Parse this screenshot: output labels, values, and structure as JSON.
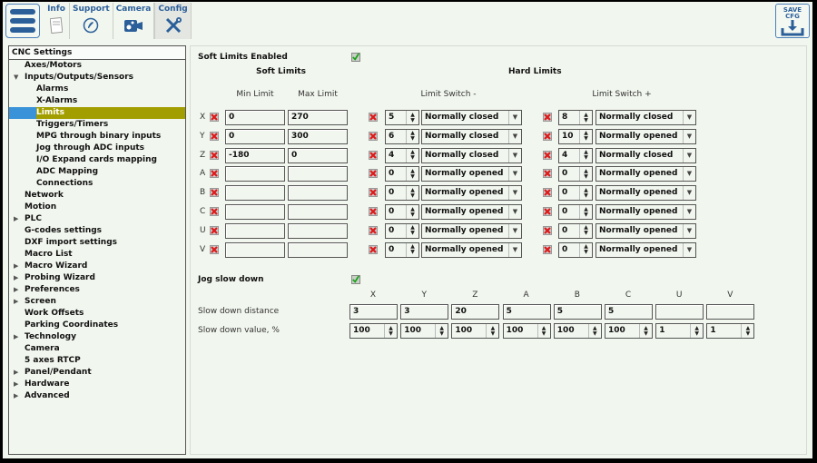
{
  "toolbar": {
    "menu_icon": "hamburger-menu-icon",
    "tabs": [
      {
        "label": "Info",
        "icon": "info-notepad-icon",
        "active": false
      },
      {
        "label": "Support",
        "icon": "phone-icon",
        "active": false
      },
      {
        "label": "Camera",
        "icon": "camera-icon",
        "active": false
      },
      {
        "label": "Config",
        "icon": "tools-icon",
        "active": true
      }
    ],
    "save_button": {
      "line1": "SAVE",
      "line2": "CFG",
      "icon": "download-icon"
    }
  },
  "sidebar": {
    "header": "CNC Settings",
    "items": [
      {
        "label": "Axes/Motors",
        "level": 1,
        "arrow": ""
      },
      {
        "label": "Inputs/Outputs/Sensors",
        "level": 1,
        "arrow": "expanded"
      },
      {
        "label": "Alarms",
        "level": 2,
        "arrow": ""
      },
      {
        "label": "X-Alarms",
        "level": 2,
        "arrow": ""
      },
      {
        "label": "Limits",
        "level": 2,
        "arrow": "",
        "selected": true
      },
      {
        "label": "Triggers/Timers",
        "level": 2,
        "arrow": ""
      },
      {
        "label": "MPG through binary inputs",
        "level": 2,
        "arrow": ""
      },
      {
        "label": "Jog through ADC inputs",
        "level": 2,
        "arrow": ""
      },
      {
        "label": "I/O Expand cards mapping",
        "level": 2,
        "arrow": ""
      },
      {
        "label": "ADC Mapping",
        "level": 2,
        "arrow": ""
      },
      {
        "label": "Connections",
        "level": 2,
        "arrow": ""
      },
      {
        "label": "Network",
        "level": 1,
        "arrow": ""
      },
      {
        "label": "Motion",
        "level": 1,
        "arrow": ""
      },
      {
        "label": "PLC",
        "level": 1,
        "arrow": "collapsed"
      },
      {
        "label": "G-codes settings",
        "level": 1,
        "arrow": ""
      },
      {
        "label": "DXF import settings",
        "level": 1,
        "arrow": ""
      },
      {
        "label": "Macro List",
        "level": 1,
        "arrow": ""
      },
      {
        "label": "Macro Wizard",
        "level": 1,
        "arrow": "collapsed"
      },
      {
        "label": "Probing Wizard",
        "level": 1,
        "arrow": "collapsed"
      },
      {
        "label": "Preferences",
        "level": 1,
        "arrow": "collapsed"
      },
      {
        "label": "Screen",
        "level": 1,
        "arrow": "collapsed"
      },
      {
        "label": "Work Offsets",
        "level": 1,
        "arrow": ""
      },
      {
        "label": "Parking Coordinates",
        "level": 1,
        "arrow": ""
      },
      {
        "label": "Technology",
        "level": 1,
        "arrow": "collapsed"
      },
      {
        "label": "Camera",
        "level": 1,
        "arrow": ""
      },
      {
        "label": "5 axes RTCP",
        "level": 1,
        "arrow": ""
      },
      {
        "label": "Panel/Pendant",
        "level": 1,
        "arrow": "collapsed"
      },
      {
        "label": "Hardware",
        "level": 1,
        "arrow": "collapsed"
      },
      {
        "label": "Advanced",
        "level": 1,
        "arrow": "collapsed"
      }
    ]
  },
  "limits": {
    "soft_limits_enabled_label": "Soft Limits Enabled",
    "soft_limits_enabled": true,
    "soft_limits_title": "Soft Limits",
    "hard_limits_title": "Hard Limits",
    "col_min": "Min Limit",
    "col_max": "Max Limit",
    "col_switch_minus": "Limit Switch -",
    "col_switch_plus": "Limit Switch +",
    "rows": [
      {
        "axis": "X",
        "soft_enabled": false,
        "min": "0",
        "max": "270",
        "minus_enabled": false,
        "minus_pin": "5",
        "minus_type": "Normally closed",
        "plus_enabled": false,
        "plus_pin": "8",
        "plus_type": "Normally closed"
      },
      {
        "axis": "Y",
        "soft_enabled": false,
        "min": "0",
        "max": "300",
        "minus_enabled": false,
        "minus_pin": "6",
        "minus_type": "Normally closed",
        "plus_enabled": false,
        "plus_pin": "10",
        "plus_type": "Normally opened"
      },
      {
        "axis": "Z",
        "soft_enabled": false,
        "min": "-180",
        "max": "0",
        "minus_enabled": false,
        "minus_pin": "4",
        "minus_type": "Normally closed",
        "plus_enabled": false,
        "plus_pin": "4",
        "plus_type": "Normally closed"
      },
      {
        "axis": "A",
        "soft_enabled": false,
        "min": "",
        "max": "",
        "minus_enabled": false,
        "minus_pin": "0",
        "minus_type": "Normally opened",
        "plus_enabled": false,
        "plus_pin": "0",
        "plus_type": "Normally opened"
      },
      {
        "axis": "B",
        "soft_enabled": false,
        "min": "",
        "max": "",
        "minus_enabled": false,
        "minus_pin": "0",
        "minus_type": "Normally opened",
        "plus_enabled": false,
        "plus_pin": "0",
        "plus_type": "Normally opened"
      },
      {
        "axis": "C",
        "soft_enabled": false,
        "min": "",
        "max": "",
        "minus_enabled": false,
        "minus_pin": "0",
        "minus_type": "Normally opened",
        "plus_enabled": false,
        "plus_pin": "0",
        "plus_type": "Normally opened"
      },
      {
        "axis": "U",
        "soft_enabled": false,
        "min": "",
        "max": "",
        "minus_enabled": false,
        "minus_pin": "0",
        "minus_type": "Normally opened",
        "plus_enabled": false,
        "plus_pin": "0",
        "plus_type": "Normally opened"
      },
      {
        "axis": "V",
        "soft_enabled": false,
        "min": "",
        "max": "",
        "minus_enabled": false,
        "minus_pin": "0",
        "minus_type": "Normally opened",
        "plus_enabled": false,
        "plus_pin": "0",
        "plus_type": "Normally opened"
      }
    ]
  },
  "jog": {
    "label": "Jog slow down",
    "enabled": true,
    "axes": [
      "X",
      "Y",
      "Z",
      "A",
      "B",
      "C",
      "U",
      "V"
    ],
    "distance_label": "Slow down distance",
    "distance": [
      "3",
      "3",
      "20",
      "5",
      "5",
      "5",
      "",
      ""
    ],
    "value_label": "Slow down value, %",
    "value": [
      "100",
      "100",
      "100",
      "100",
      "100",
      "100",
      "1",
      "1"
    ]
  },
  "colors": {
    "background": "#f1f6ee",
    "accent_blue": "#2b5f9a",
    "selected_item": "#a39e00",
    "selected_strip": "#3a92d8",
    "check_green": "#1aa31a",
    "cross_red": "#e01818"
  }
}
